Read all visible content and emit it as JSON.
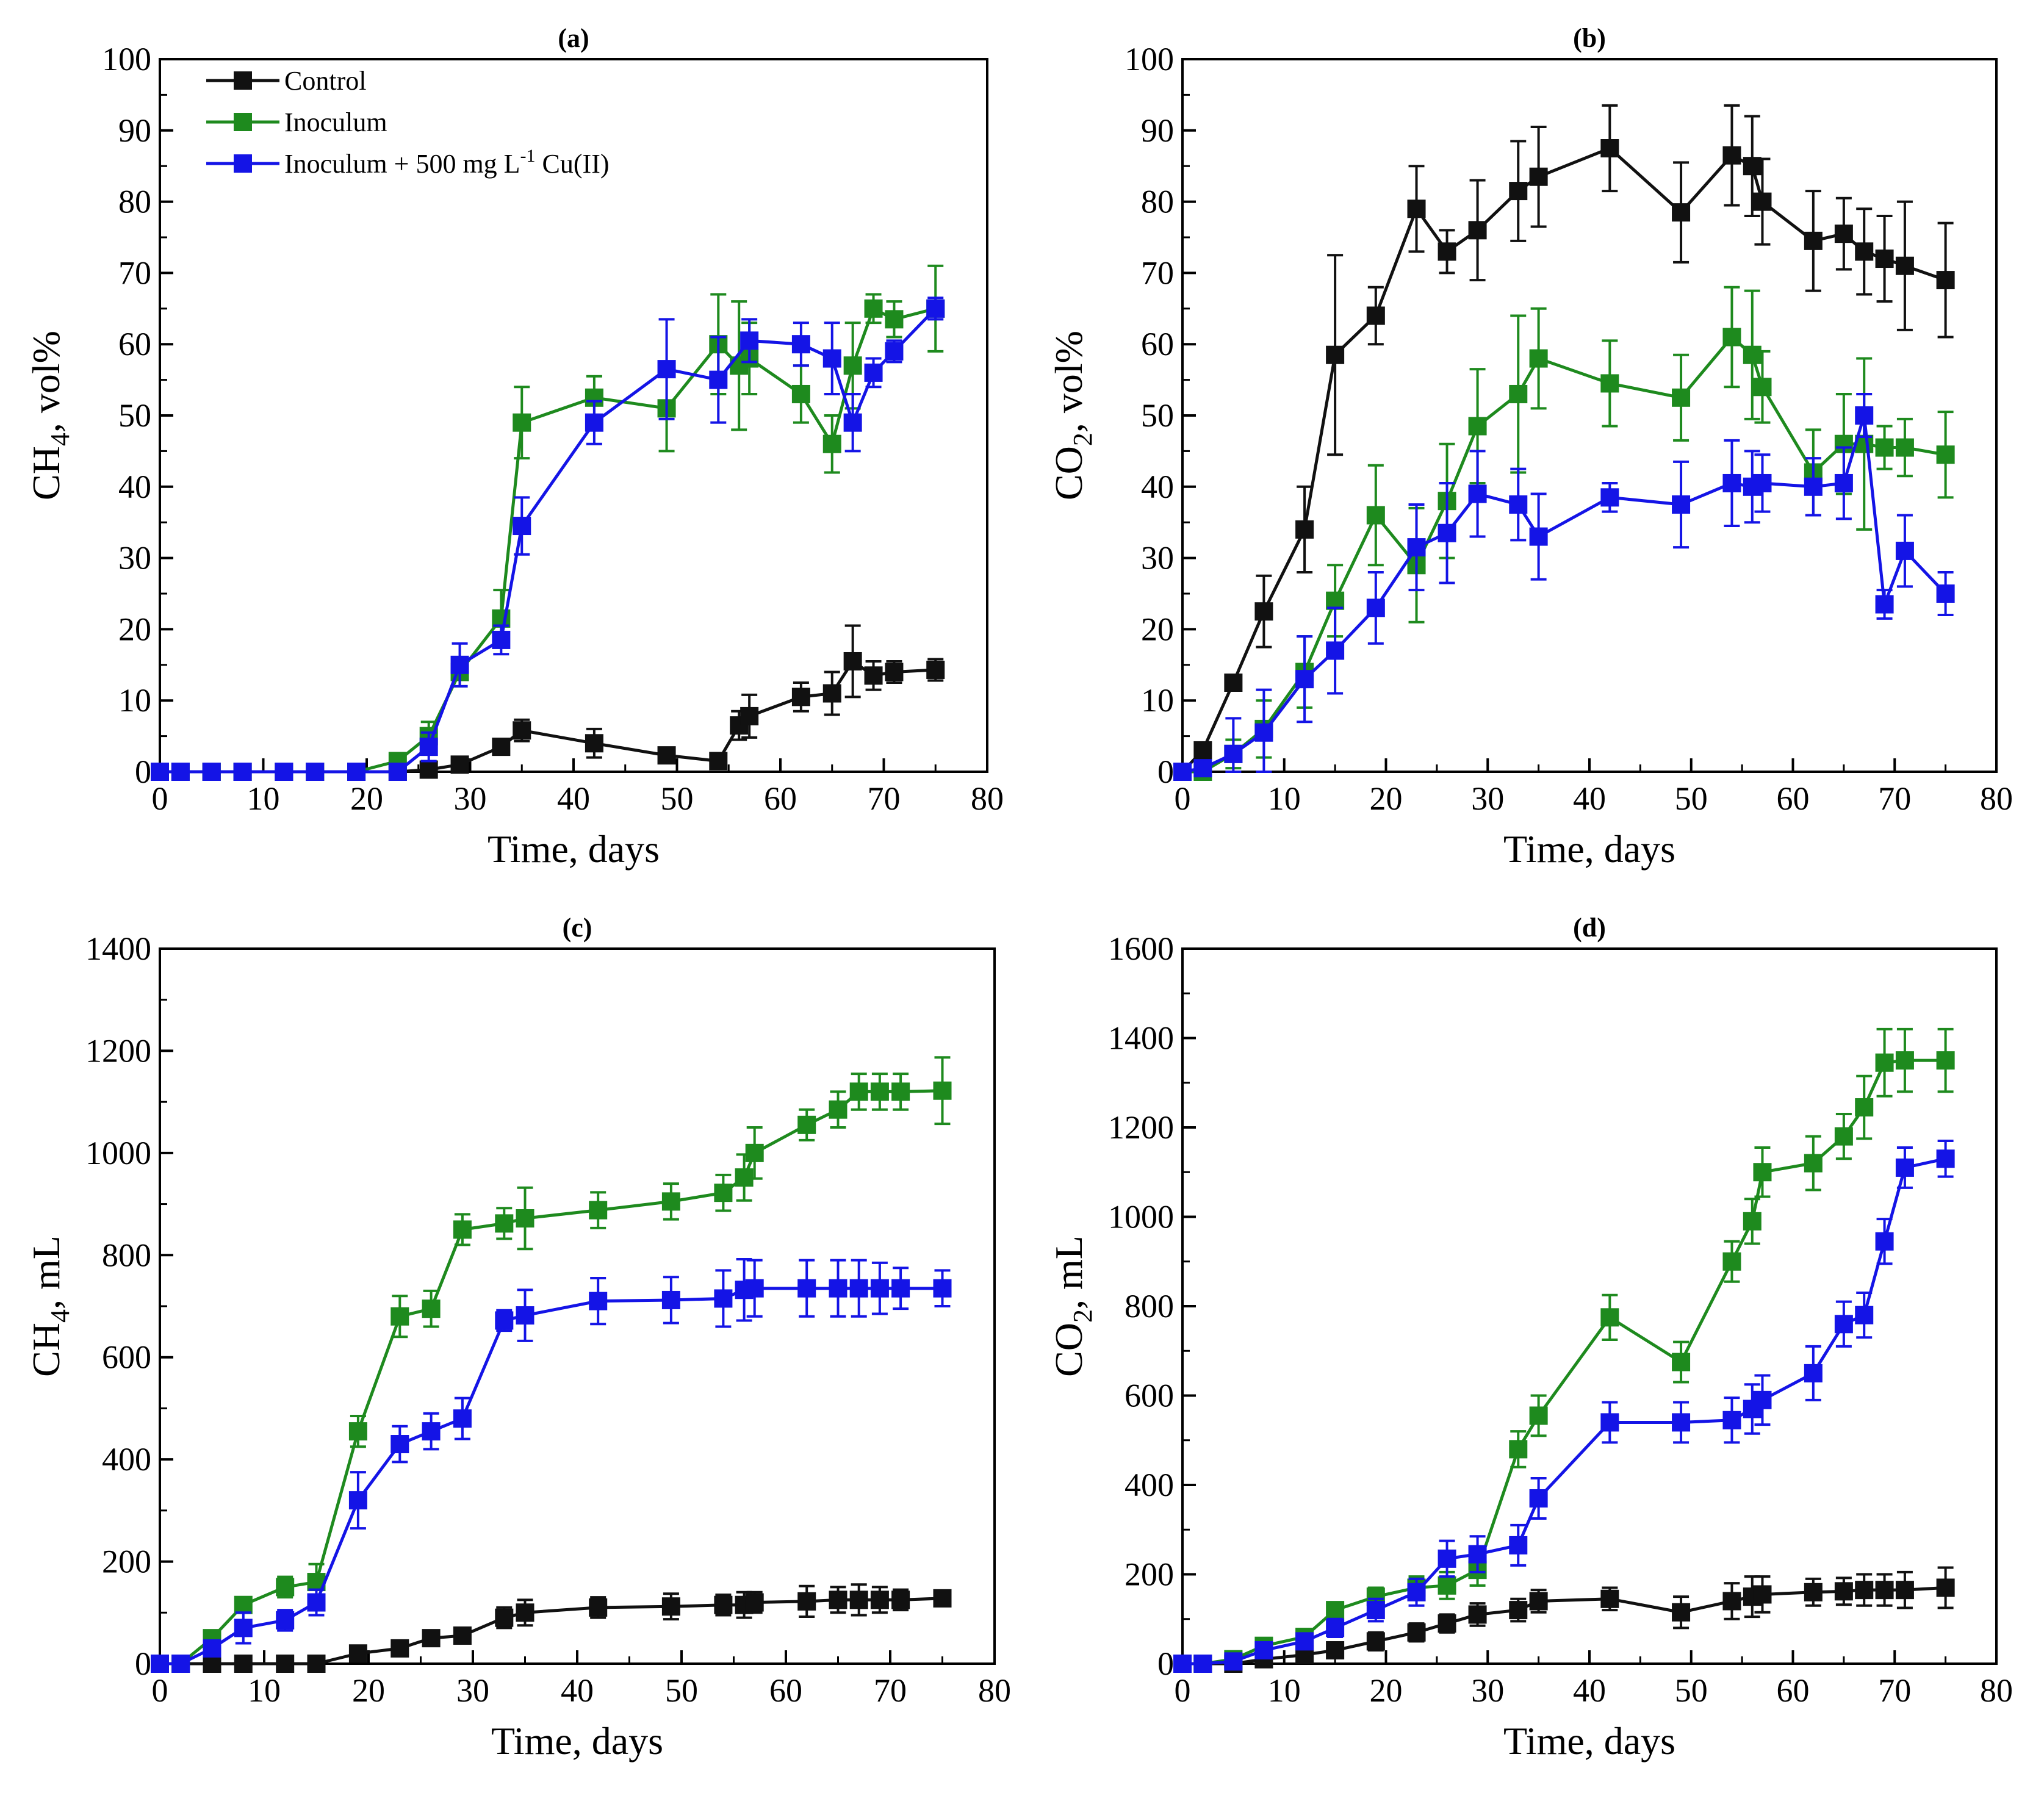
{
  "colors": {
    "control": "#111111",
    "inoculum": "#1e8a1e",
    "cu": "#1414e6"
  },
  "legend": {
    "control": "Control",
    "inoculum": "Inoculum",
    "cu_main": "Inoculum + 500 mg L",
    "cu_sup": "-1",
    "cu_tail": " Cu(II)"
  },
  "chart_data": [
    {
      "panel": "(a)",
      "type": "line",
      "ylabel": {
        "main": "CH",
        "sub": "4",
        "tail": ", vol%"
      },
      "xlabel": "Time, days",
      "xlim": [
        0,
        80
      ],
      "ylim": [
        0,
        100
      ],
      "xticks": [
        0,
        10,
        20,
        30,
        40,
        50,
        60,
        70,
        80
      ],
      "yticks": [
        0,
        10,
        20,
        30,
        40,
        50,
        60,
        70,
        80,
        90,
        100
      ],
      "series": [
        {
          "key": "control",
          "name": "Control",
          "x": [
            0,
            2,
            5,
            8,
            12,
            15,
            19,
            23,
            26,
            29,
            33,
            35,
            42,
            49,
            54,
            56,
            57,
            62,
            65,
            67,
            69,
            71,
            75
          ],
          "y": [
            0,
            0,
            0,
            0,
            0,
            0,
            0,
            0,
            0.3,
            1,
            3.5,
            5.8,
            4,
            2.3,
            1.5,
            6.5,
            7.8,
            10.5,
            11,
            15.5,
            13.5,
            14,
            14.3
          ],
          "err": [
            0,
            0,
            0,
            0,
            0,
            0,
            0,
            0,
            0.5,
            0.5,
            1,
            1.5,
            2,
            1,
            1,
            2,
            3,
            2,
            3,
            5,
            2,
            1.5,
            1.5
          ]
        },
        {
          "key": "inoculum",
          "name": "Inoculum",
          "x": [
            0,
            2,
            5,
            8,
            12,
            15,
            19,
            23,
            26,
            29,
            33,
            35,
            42,
            49,
            54,
            56,
            57,
            62,
            65,
            67,
            69,
            71,
            75
          ],
          "y": [
            0,
            0,
            0,
            0,
            0,
            0,
            0,
            1.5,
            5,
            14,
            21.5,
            49,
            52.5,
            51,
            60,
            57,
            58,
            53,
            46,
            57,
            65,
            63.5,
            65
          ],
          "err": [
            0,
            0,
            0,
            0,
            0,
            0,
            0,
            1,
            2,
            2,
            4,
            5,
            3,
            6,
            7,
            9,
            5,
            4,
            4,
            6,
            2,
            2.5,
            6
          ]
        },
        {
          "key": "cu",
          "name": "Inoculum + 500 mg L-1 Cu(II)",
          "x": [
            0,
            2,
            5,
            8,
            12,
            15,
            19,
            23,
            26,
            29,
            33,
            35,
            42,
            49,
            54,
            57,
            62,
            65,
            67,
            69,
            71,
            75
          ],
          "y": [
            0,
            0,
            0,
            0,
            0,
            0,
            0,
            0,
            3.5,
            15,
            18.5,
            34.5,
            49,
            56.5,
            55,
            60.5,
            60,
            58,
            49,
            56,
            59,
            65
          ],
          "err": [
            0,
            0,
            0,
            0,
            0,
            0,
            0,
            0,
            2,
            3,
            2,
            4,
            3,
            7,
            6,
            3,
            3,
            5,
            4,
            2,
            1.5,
            1.5
          ]
        }
      ]
    },
    {
      "panel": "(b)",
      "type": "line",
      "ylabel": {
        "main": "CO",
        "sub": "2",
        "tail": ", vol%"
      },
      "xlabel": "Time, days",
      "xlim": [
        0,
        80
      ],
      "ylim": [
        0,
        100
      ],
      "xticks": [
        0,
        10,
        20,
        30,
        40,
        50,
        60,
        70,
        80
      ],
      "yticks": [
        0,
        10,
        20,
        30,
        40,
        50,
        60,
        70,
        80,
        90,
        100
      ],
      "series": [
        {
          "key": "control",
          "name": "Control",
          "x": [
            0,
            2,
            5,
            8,
            12,
            15,
            19,
            23,
            26,
            29,
            33,
            35,
            42,
            49,
            54,
            56,
            57,
            62,
            65,
            67,
            69,
            71,
            75
          ],
          "y": [
            0,
            3,
            12.5,
            22.5,
            34,
            58.5,
            64,
            79,
            73,
            76,
            81.5,
            83.5,
            87.5,
            78.5,
            86.5,
            85,
            80,
            74.5,
            75.5,
            73,
            72,
            71,
            69
          ],
          "err": [
            0,
            0.5,
            1,
            5,
            6,
            14,
            4,
            6,
            3,
            7,
            7,
            7,
            6,
            7,
            7,
            7,
            6,
            7,
            5,
            6,
            6,
            9,
            8
          ]
        },
        {
          "key": "inoculum",
          "name": "Inoculum",
          "x": [
            0,
            2,
            5,
            8,
            12,
            15,
            19,
            23,
            26,
            29,
            33,
            35,
            42,
            49,
            54,
            56,
            57,
            62,
            65,
            67,
            69,
            71,
            75
          ],
          "y": [
            0,
            0,
            2.5,
            6,
            14,
            24,
            36,
            29,
            38,
            48.5,
            53,
            58,
            54.5,
            52.5,
            61,
            58.5,
            54,
            42,
            46,
            46,
            45.5,
            45.5,
            44.5
          ],
          "err": [
            0,
            0,
            2,
            4,
            5,
            5,
            7,
            8,
            8,
            8,
            11,
            7,
            6,
            6,
            7,
            9,
            5,
            6,
            7,
            12,
            3,
            4,
            6
          ]
        },
        {
          "key": "cu",
          "name": "Inoculum + 500 mg L-1 Cu(II)",
          "x": [
            0,
            2,
            5,
            8,
            12,
            15,
            19,
            23,
            26,
            29,
            33,
            35,
            42,
            49,
            54,
            56,
            57,
            62,
            65,
            67,
            69,
            71,
            75
          ],
          "y": [
            0,
            0.5,
            2.5,
            5.5,
            13,
            17,
            23,
            31.5,
            33.5,
            39,
            37.5,
            33,
            38.5,
            37.5,
            40.5,
            40,
            40.5,
            40,
            40.5,
            50,
            23.5,
            31,
            25
          ],
          "err": [
            0,
            0.5,
            5,
            6,
            6,
            6,
            5,
            6,
            7,
            6,
            5,
            6,
            2,
            6,
            6,
            5,
            4,
            4,
            5,
            3,
            2,
            5,
            3
          ]
        }
      ]
    },
    {
      "panel": "(c)",
      "type": "line",
      "ylabel": {
        "main": "CH",
        "sub": "4",
        "tail": ", mL"
      },
      "xlabel": "Time, days",
      "xlim": [
        0,
        80
      ],
      "ylim": [
        0,
        1400
      ],
      "xticks": [
        0,
        10,
        20,
        30,
        40,
        50,
        60,
        70,
        80
      ],
      "yticks": [
        0,
        200,
        400,
        600,
        800,
        1000,
        1200,
        1400
      ],
      "series": [
        {
          "key": "control",
          "name": "Control",
          "x": [
            0,
            2,
            5,
            8,
            12,
            15,
            19,
            23,
            26,
            29,
            33,
            35,
            42,
            49,
            54,
            56,
            57,
            62,
            65,
            67,
            69,
            71,
            75
          ],
          "y": [
            0,
            0,
            0,
            0,
            0,
            0,
            20,
            30,
            50,
            55,
            90,
            100,
            110,
            112,
            115,
            115,
            120,
            122,
            125,
            125,
            125,
            125,
            128
          ],
          "err": [
            0,
            0,
            0,
            0,
            0,
            0,
            5,
            8,
            10,
            12,
            20,
            25,
            20,
            25,
            20,
            25,
            20,
            30,
            25,
            30,
            25,
            20,
            15
          ]
        },
        {
          "key": "inoculum",
          "name": "Inoculum",
          "x": [
            0,
            2,
            5,
            8,
            12,
            15,
            19,
            23,
            26,
            29,
            33,
            35,
            42,
            49,
            54,
            56,
            57,
            62,
            65,
            67,
            69,
            71,
            75
          ],
          "y": [
            0,
            0,
            50,
            115,
            150,
            160,
            455,
            680,
            695,
            850,
            862,
            872,
            888,
            905,
            922,
            952,
            1000,
            1055,
            1085,
            1120,
            1120,
            1120,
            1122
          ],
          "err": [
            0,
            0,
            10,
            15,
            20,
            35,
            30,
            40,
            35,
            30,
            30,
            60,
            35,
            35,
            35,
            45,
            50,
            30,
            35,
            35,
            35,
            35,
            65
          ]
        },
        {
          "key": "cu",
          "name": "Inoculum + 500 mg L-1 Cu(II)",
          "x": [
            0,
            2,
            5,
            8,
            12,
            15,
            19,
            23,
            26,
            29,
            33,
            35,
            42,
            49,
            54,
            56,
            57,
            62,
            65,
            67,
            69,
            71,
            75
          ],
          "y": [
            0,
            0,
            30,
            70,
            85,
            120,
            320,
            430,
            455,
            480,
            672,
            682,
            710,
            712,
            715,
            732,
            735,
            735,
            735,
            735,
            735,
            735,
            735
          ],
          "err": [
            0,
            0,
            10,
            30,
            20,
            25,
            55,
            35,
            35,
            40,
            20,
            50,
            45,
            45,
            55,
            60,
            55,
            55,
            55,
            55,
            50,
            40,
            35
          ]
        }
      ]
    },
    {
      "panel": "(d)",
      "type": "line",
      "ylabel": {
        "main": "CO",
        "sub": "2",
        "tail": ", mL"
      },
      "xlabel": "Time, days",
      "xlim": [
        0,
        80
      ],
      "ylim": [
        0,
        1600
      ],
      "xticks": [
        0,
        10,
        20,
        30,
        40,
        50,
        60,
        70,
        80
      ],
      "yticks": [
        0,
        200,
        400,
        600,
        800,
        1000,
        1200,
        1400,
        1600
      ],
      "series": [
        {
          "key": "control",
          "name": "Control",
          "x": [
            0,
            2,
            5,
            8,
            12,
            15,
            19,
            23,
            26,
            29,
            33,
            35,
            42,
            49,
            54,
            56,
            57,
            62,
            65,
            67,
            69,
            71,
            75
          ],
          "y": [
            0,
            0,
            0,
            10,
            20,
            30,
            50,
            70,
            90,
            110,
            120,
            140,
            145,
            115,
            140,
            150,
            155,
            160,
            162,
            165,
            165,
            165,
            170
          ],
          "err": [
            0,
            0,
            0,
            5,
            10,
            15,
            20,
            20,
            20,
            25,
            25,
            25,
            25,
            35,
            40,
            45,
            40,
            30,
            30,
            35,
            35,
            40,
            45
          ]
        },
        {
          "key": "inoculum",
          "name": "Inoculum",
          "x": [
            0,
            2,
            5,
            8,
            12,
            15,
            19,
            23,
            26,
            29,
            33,
            35,
            42,
            49,
            54,
            56,
            57,
            62,
            65,
            67,
            69,
            71,
            75
          ],
          "y": [
            0,
            0,
            10,
            40,
            60,
            120,
            150,
            170,
            175,
            210,
            480,
            555,
            775,
            675,
            900,
            990,
            1100,
            1120,
            1180,
            1245,
            1345,
            1350,
            1350
          ],
          "err": [
            0,
            0,
            5,
            10,
            15,
            15,
            20,
            25,
            30,
            35,
            40,
            45,
            50,
            45,
            45,
            50,
            55,
            60,
            50,
            70,
            75,
            70,
            70
          ]
        },
        {
          "key": "cu",
          "name": "Inoculum + 500 mg L-1 Cu(II)",
          "x": [
            0,
            2,
            5,
            8,
            12,
            15,
            19,
            23,
            26,
            29,
            33,
            35,
            42,
            49,
            54,
            56,
            57,
            62,
            65,
            67,
            69,
            71,
            75
          ],
          "y": [
            0,
            0,
            5,
            30,
            50,
            80,
            120,
            160,
            235,
            245,
            265,
            370,
            540,
            540,
            545,
            570,
            590,
            650,
            760,
            780,
            945,
            1110,
            1130
          ],
          "err": [
            0,
            0,
            5,
            10,
            15,
            20,
            25,
            30,
            40,
            40,
            45,
            45,
            45,
            45,
            50,
            55,
            55,
            60,
            50,
            50,
            50,
            45,
            40
          ]
        }
      ]
    }
  ]
}
